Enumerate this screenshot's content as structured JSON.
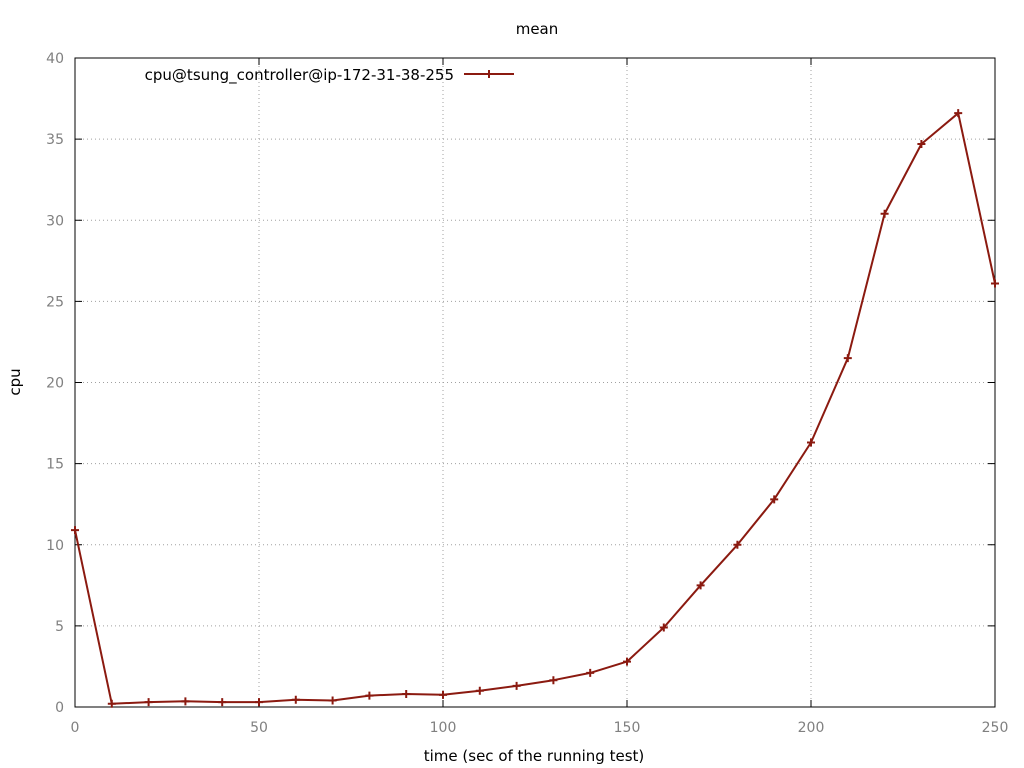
{
  "chart_data": {
    "type": "line",
    "title": "mean",
    "xlabel": "time (sec of the running test)",
    "ylabel": "cpu",
    "xlim": [
      0,
      250
    ],
    "ylim": [
      0,
      40
    ],
    "xticks": [
      0,
      50,
      100,
      150,
      200,
      250
    ],
    "yticks": [
      0,
      5,
      10,
      15,
      20,
      25,
      30,
      35,
      40
    ],
    "grid": true,
    "legend_position": "top-left",
    "series": [
      {
        "name": "cpu@tsung_controller@ip-172-31-38-255",
        "color": "#8b1a10",
        "marker": "plus",
        "x": [
          0,
          10,
          20,
          30,
          40,
          50,
          60,
          70,
          80,
          90,
          100,
          110,
          120,
          130,
          140,
          150,
          160,
          170,
          180,
          190,
          200,
          210,
          220,
          230,
          240,
          250
        ],
        "y": [
          10.9,
          0.2,
          0.3,
          0.35,
          0.3,
          0.3,
          0.45,
          0.4,
          0.7,
          0.8,
          0.75,
          1.0,
          1.3,
          1.65,
          2.1,
          2.8,
          4.9,
          7.5,
          10.0,
          12.8,
          16.3,
          21.5,
          30.4,
          34.7,
          36.6,
          26.1
        ]
      }
    ]
  }
}
